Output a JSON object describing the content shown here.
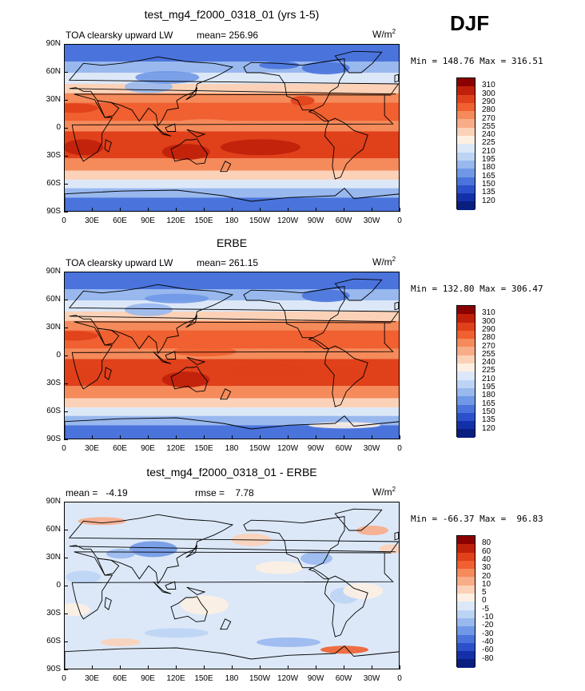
{
  "season": "DJF",
  "units": "W/m",
  "units_sup": "2",
  "lat_labels": [
    "90N",
    "60N",
    "30N",
    "0",
    "30S",
    "60S",
    "90S"
  ],
  "lon_labels": [
    "0",
    "30E",
    "60E",
    "90E",
    "120E",
    "150E",
    "180",
    "150W",
    "120W",
    "90W",
    "60W",
    "30W",
    "0"
  ],
  "panels": [
    {
      "title": "test_mg4_f2000_0318_01 (yrs 1-5)",
      "left_text": "TOA clearsky upward LW",
      "stat1_label": "mean=",
      "stat1_value": "256.96",
      "stat2_label": "",
      "stat2_value": "",
      "minmax": "Min = 148.76 Max = 316.51",
      "levels": [
        "310",
        "300",
        "290",
        "280",
        "270",
        "255",
        "240",
        "225",
        "210",
        "195",
        "180",
        "165",
        "150",
        "135",
        "120"
      ],
      "colors": [
        "#8b0000",
        "#c0200a",
        "#e0401a",
        "#f06030",
        "#f58a5a",
        "#f8ac88",
        "#fbd2b8",
        "#fdf0e2",
        "#dce8f8",
        "#bcd4f4",
        "#98b8ee",
        "#7098e6",
        "#4a74dc",
        "#2c50cc",
        "#1430a8",
        "#0a1e80"
      ]
    },
    {
      "title": "ERBE",
      "left_text": "TOA clearsky upward LW",
      "stat1_label": "mean=",
      "stat1_value": "261.15",
      "stat2_label": "",
      "stat2_value": "",
      "minmax": "Min = 132.80 Max = 306.47",
      "levels": [
        "310",
        "300",
        "290",
        "280",
        "270",
        "255",
        "240",
        "225",
        "210",
        "195",
        "180",
        "165",
        "150",
        "135",
        "120"
      ],
      "colors": [
        "#8b0000",
        "#c0200a",
        "#e0401a",
        "#f06030",
        "#f58a5a",
        "#f8ac88",
        "#fbd2b8",
        "#fdf0e2",
        "#dce8f8",
        "#bcd4f4",
        "#98b8ee",
        "#7098e6",
        "#4a74dc",
        "#2c50cc",
        "#1430a8",
        "#0a1e80"
      ]
    },
    {
      "title": "test_mg4_f2000_0318_01 - ERBE",
      "left_text": "",
      "stat1_label": "mean =",
      "stat1_value": "-4.19",
      "stat2_label": "rmse =",
      "stat2_value": "7.78",
      "minmax": "Min = -66.37 Max =  96.83",
      "levels": [
        "80",
        "60",
        "40",
        "30",
        "20",
        "10",
        "5",
        "0",
        "-5",
        "-10",
        "-20",
        "-30",
        "-40",
        "-60",
        "-80"
      ],
      "colors": [
        "#8b0000",
        "#c0200a",
        "#e0401a",
        "#f06030",
        "#f58a5a",
        "#f8ac88",
        "#fbd2b8",
        "#fdf0e2",
        "#dce8f8",
        "#bcd4f4",
        "#98b8ee",
        "#7098e6",
        "#4a74dc",
        "#2c50cc",
        "#1430a8",
        "#0a1e80"
      ]
    }
  ]
}
